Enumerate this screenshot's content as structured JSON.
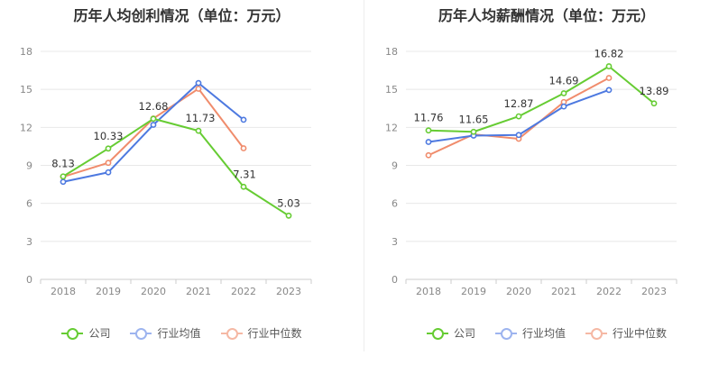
{
  "chart_data": [
    {
      "type": "line",
      "title": "历年人均创利情况（单位：万元）",
      "categories": [
        "2018",
        "2019",
        "2020",
        "2021",
        "2022",
        "2023"
      ],
      "ylim": [
        0,
        18
      ],
      "yticks": [
        "0",
        "3",
        "6",
        "9",
        "12",
        "15",
        "18"
      ],
      "grid": true,
      "legend_position": "bottom",
      "series": [
        {
          "name": "公司",
          "color": "#66cc33",
          "values": [
            8.13,
            10.33,
            12.68,
            11.73,
            7.31,
            5.03
          ],
          "labels": [
            "8.13",
            "10.33",
            "12.68",
            "11.73",
            "7.31",
            "5.03"
          ]
        },
        {
          "name": "行业均值",
          "color": "#4d79e0",
          "values": [
            7.7,
            8.45,
            12.2,
            15.5,
            12.6,
            null
          ]
        },
        {
          "name": "行业中位数",
          "color": "#f08c6c",
          "values": [
            8.1,
            9.2,
            12.7,
            15.05,
            10.35,
            null
          ]
        }
      ]
    },
    {
      "type": "line",
      "title": "历年人均薪酬情况（单位：万元）",
      "categories": [
        "2018",
        "2019",
        "2020",
        "2021",
        "2022",
        "2023"
      ],
      "ylim": [
        0,
        18
      ],
      "yticks": [
        "0",
        "3",
        "6",
        "9",
        "12",
        "15",
        "18"
      ],
      "grid": true,
      "legend_position": "bottom",
      "series": [
        {
          "name": "公司",
          "color": "#66cc33",
          "values": [
            11.76,
            11.65,
            12.87,
            14.69,
            16.82,
            13.89
          ],
          "labels": [
            "11.76",
            "11.65",
            "12.87",
            "14.69",
            "16.82",
            "13.89"
          ]
        },
        {
          "name": "行业均值",
          "color": "#4d79e0",
          "values": [
            10.85,
            11.35,
            11.4,
            13.65,
            14.95,
            null
          ]
        },
        {
          "name": "行业中位数",
          "color": "#f08c6c",
          "values": [
            9.8,
            11.45,
            11.1,
            14.0,
            15.9,
            null
          ]
        }
      ]
    }
  ]
}
